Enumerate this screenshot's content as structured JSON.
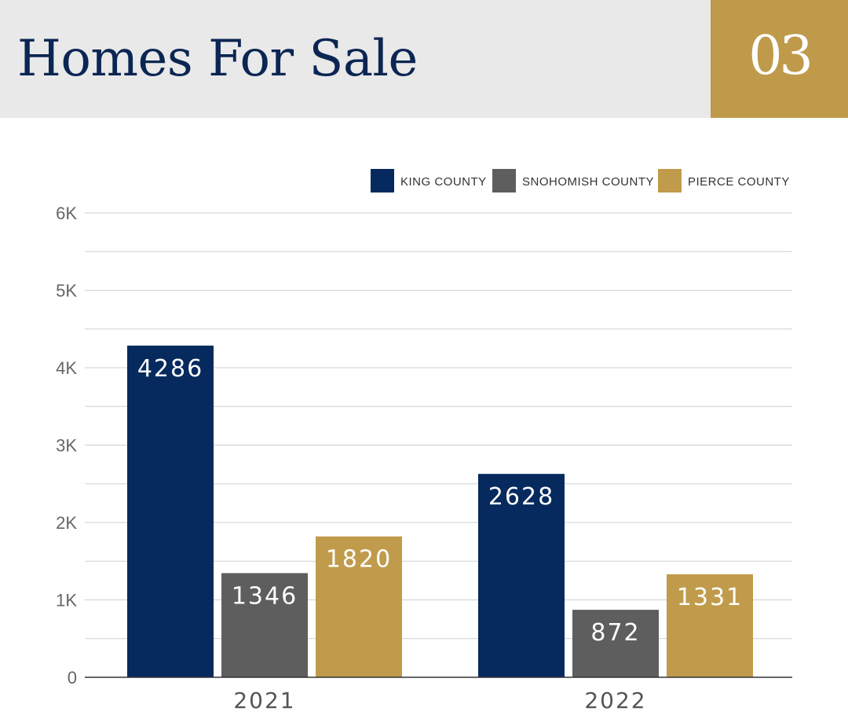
{
  "header": {
    "title": "Homes For Sale",
    "badge": "03"
  },
  "colors": {
    "header_bg": "#e9e9e9",
    "badge_bg": "#bf9a4a",
    "title": "#0b2653"
  },
  "chart_data": {
    "type": "bar",
    "categories": [
      "2021",
      "2022"
    ],
    "series": [
      {
        "name": "KING COUNTY",
        "color": "#062a5e",
        "values": [
          4286,
          2628
        ]
      },
      {
        "name": "SNOHOMISH COUNTY",
        "color": "#5e5e5e",
        "values": [
          1346,
          872
        ]
      },
      {
        "name": "PIERCE COUNTY",
        "color": "#c09b4b",
        "values": [
          1820,
          1331
        ]
      }
    ],
    "ylim": [
      0,
      6000
    ],
    "yticks": [
      {
        "value": 0,
        "label": "0"
      },
      {
        "value": 1000,
        "label": "1K"
      },
      {
        "value": 2000,
        "label": "2K"
      },
      {
        "value": 3000,
        "label": "3K"
      },
      {
        "value": 4000,
        "label": "4K"
      },
      {
        "value": 5000,
        "label": "5K"
      },
      {
        "value": 6000,
        "label": "6K"
      }
    ],
    "minor_gridlines": true,
    "legend_position": "top-right",
    "data_labels": true
  }
}
